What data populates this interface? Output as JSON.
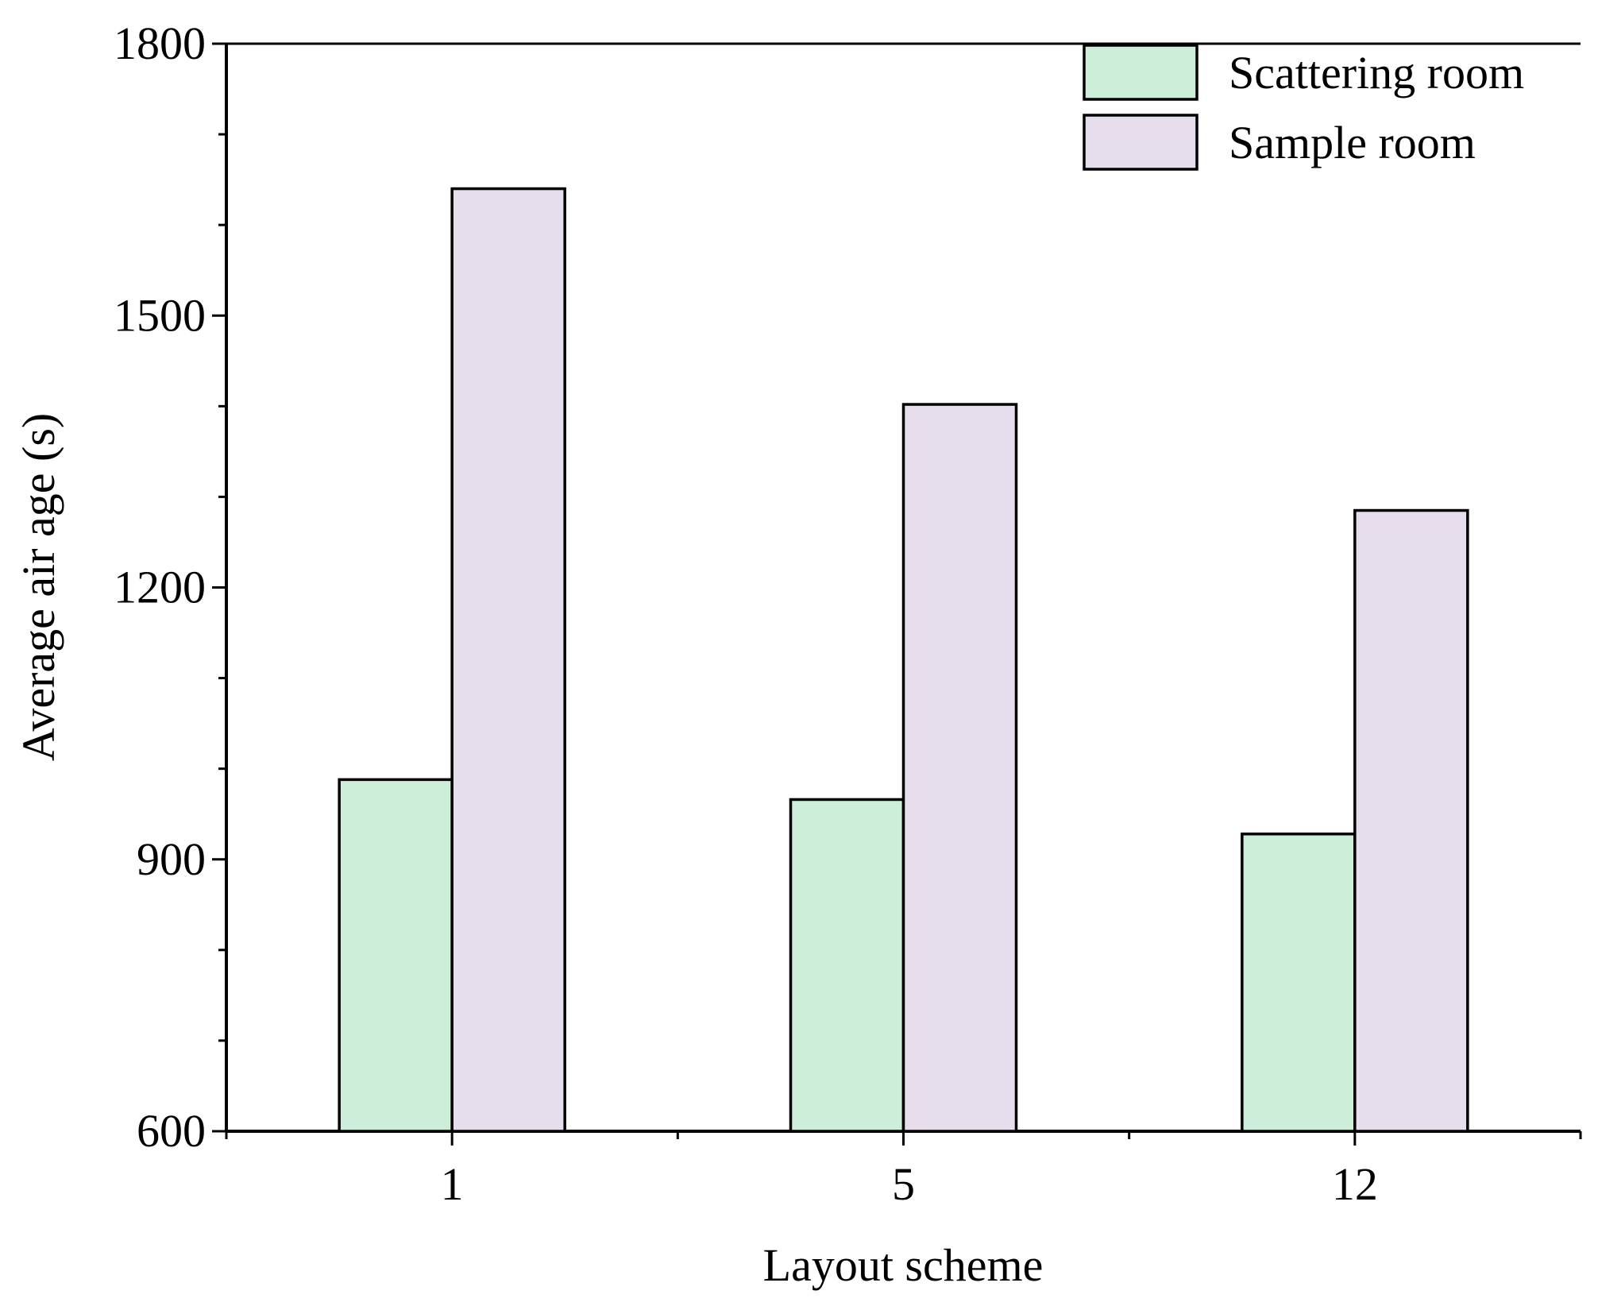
{
  "chart_data": {
    "type": "bar",
    "title": "",
    "xlabel": "Layout scheme",
    "ylabel": "Average air age (s)",
    "categories": [
      "1",
      "5",
      "12"
    ],
    "ylim": [
      600,
      1800
    ],
    "yticks": [
      "600",
      "900",
      "1200",
      "1500",
      "1800"
    ],
    "grid": false,
    "legend_position": "top-right",
    "series": [
      {
        "name": "Scattering room",
        "color": "#cdeed8",
        "values": [
          988,
          966,
          928
        ]
      },
      {
        "name": "Sample room",
        "color": "#e6deed",
        "values": [
          1640,
          1402,
          1285
        ]
      }
    ]
  }
}
